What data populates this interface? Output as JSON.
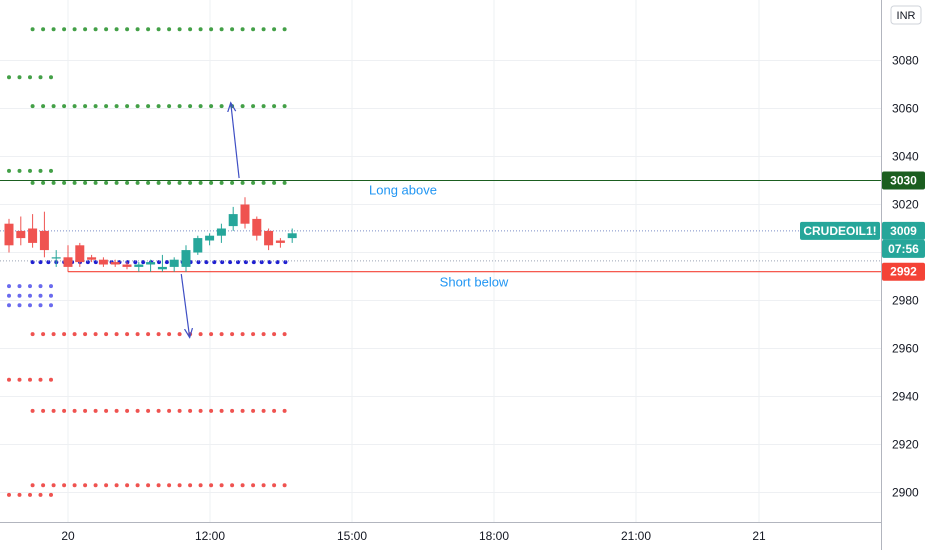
{
  "currency": "INR",
  "colors": {
    "grid": "#eef0f3",
    "up": "#26a69a",
    "down": "#ef5350",
    "long_dots": "#43a047",
    "short_dots": "#ef5350",
    "pivot_dots": "#1f1fd1",
    "blue_block": "#6a6aee",
    "long_line": "#1b5e20",
    "short_line": "#f44336",
    "arrow": "#3f4fc4",
    "anno": "#2196f3",
    "price_tag": "#26a69a",
    "long_tag": "#1b5e20",
    "short_tag": "#f44336"
  },
  "chart_data": {
    "type": "candlestick",
    "y_axis": {
      "ticks": [
        2900,
        2920,
        2940,
        2960,
        2980,
        3000,
        3020,
        3040,
        3060,
        3080
      ],
      "range": [
        2890,
        3100
      ]
    },
    "x_axis": {
      "labels": [
        "20",
        "12:00",
        "15:00",
        "18:00",
        "21:00",
        "21"
      ]
    },
    "candles": [
      {
        "o": 3012,
        "h": 3014,
        "l": 3000,
        "c": 3003
      },
      {
        "o": 3009,
        "h": 3015,
        "l": 3003,
        "c": 3006
      },
      {
        "o": 3010,
        "h": 3016,
        "l": 3002,
        "c": 3004
      },
      {
        "o": 3009,
        "h": 3017,
        "l": 2998,
        "c": 3001
      },
      {
        "o": 2998,
        "h": 3001,
        "l": 2994,
        "c": 2998
      },
      {
        "o": 2998,
        "h": 3003,
        "l": 2993,
        "c": 2994
      },
      {
        "o": 3003,
        "h": 3004,
        "l": 2994,
        "c": 2996
      },
      {
        "o": 2998,
        "h": 2999,
        "l": 2996,
        "c": 2997
      },
      {
        "o": 2997,
        "h": 2998,
        "l": 2994,
        "c": 2995
      },
      {
        "o": 2996,
        "h": 2997,
        "l": 2994,
        "c": 2995
      },
      {
        "o": 2995,
        "h": 2996,
        "l": 2993,
        "c": 2994
      },
      {
        "o": 2994,
        "h": 2996,
        "l": 2992,
        "c": 2995
      },
      {
        "o": 2995,
        "h": 2997,
        "l": 2992,
        "c": 2996
      },
      {
        "o": 2993,
        "h": 2999,
        "l": 2992,
        "c": 2994
      },
      {
        "o": 2994,
        "h": 2998,
        "l": 2992,
        "c": 2997
      },
      {
        "o": 2994,
        "h": 3003,
        "l": 2992,
        "c": 3001
      },
      {
        "o": 3000,
        "h": 3007,
        "l": 2999,
        "c": 3006
      },
      {
        "o": 3005,
        "h": 3008,
        "l": 3003,
        "c": 3007
      },
      {
        "o": 3007,
        "h": 3012,
        "l": 3004,
        "c": 3010
      },
      {
        "o": 3011,
        "h": 3019,
        "l": 3009,
        "c": 3016
      },
      {
        "o": 3020,
        "h": 3023,
        "l": 3010,
        "c": 3012
      },
      {
        "o": 3014,
        "h": 3015,
        "l": 3005,
        "c": 3007
      },
      {
        "o": 3009,
        "h": 3010,
        "l": 3001,
        "c": 3003
      },
      {
        "o": 3005,
        "h": 3006,
        "l": 3002,
        "c": 3004
      },
      {
        "o": 3006,
        "h": 3010,
        "l": 3004,
        "c": 3008
      }
    ],
    "dotted_levels": [
      {
        "kind": "long",
        "value": 3093,
        "from": 2,
        "to": 24
      },
      {
        "kind": "long",
        "value": 3073,
        "from": -5,
        "to": 1
      },
      {
        "kind": "long",
        "value": 3061,
        "from": 2,
        "to": 24
      },
      {
        "kind": "long",
        "value": 3034,
        "from": -5,
        "to": 1
      },
      {
        "kind": "long",
        "value": 3029,
        "from": 2,
        "to": 24
      },
      {
        "kind": "pivot",
        "value": 2996,
        "from": 2,
        "to": 24
      },
      {
        "kind": "short",
        "value": 2966,
        "from": 2,
        "to": 24
      },
      {
        "kind": "short",
        "value": 2947,
        "from": -5,
        "to": 1
      },
      {
        "kind": "short",
        "value": 2934,
        "from": 2,
        "to": 24
      },
      {
        "kind": "short",
        "value": 2903,
        "from": 2,
        "to": 24
      },
      {
        "kind": "short",
        "value": 2899,
        "from": -5,
        "to": 1
      }
    ],
    "horizontal_lines": [
      {
        "name": "long-above",
        "value": 3030,
        "label": "Long above"
      },
      {
        "name": "short-below",
        "value": 2992,
        "label": "Short below"
      }
    ],
    "current_price": 3009,
    "symbol": "CRUDEOIL1!",
    "countdown": "07:56",
    "arrows": [
      {
        "from": {
          "i": 19.5,
          "v": 3031
        },
        "to": {
          "i": 18.8,
          "v": 3062
        }
      },
      {
        "from": {
          "i": 14.6,
          "v": 2991
        },
        "to": {
          "i": 15.3,
          "v": 2965
        }
      }
    ]
  }
}
